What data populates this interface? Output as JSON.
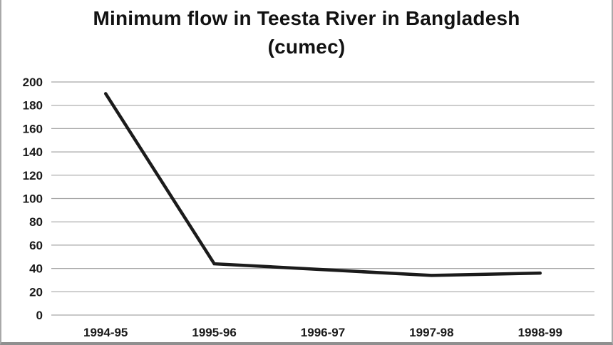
{
  "window": {
    "bg": "#ffffff",
    "side_border_color": "#a9a9a9",
    "bottom_edge_color": "#8f8f8f"
  },
  "chart": {
    "title_line1": "Minimum flow in Teesta River in Bangladesh",
    "title_line2": "(cumec)"
  },
  "chart_data": {
    "type": "line",
    "title": "Minimum flow in Teesta River in Bangladesh (cumec)",
    "categories": [
      "1994-95",
      "1995-96",
      "1996-97",
      "1997-98",
      "1998-99"
    ],
    "values": [
      190,
      44,
      39,
      34,
      36
    ],
    "xlabel": "",
    "ylabel": "",
    "ylim": [
      0,
      200
    ],
    "ytick_step": 20,
    "grid": true,
    "legend": false,
    "line_color": "#1b1b1b",
    "grid_color": "#a6a6a6",
    "text_color": "#1a1a1a"
  }
}
